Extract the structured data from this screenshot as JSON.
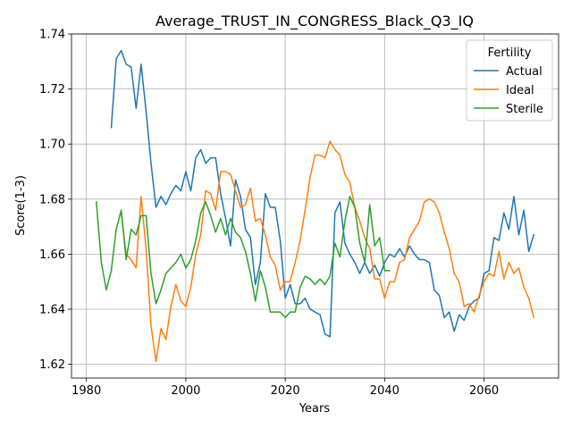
{
  "chart_data": {
    "type": "line",
    "title": "Average_TRUST_IN_CONGRESS_Black_Q3_IQ",
    "xlabel": "Years",
    "ylabel": "Score(1-3)",
    "xlim": [
      1977,
      2075
    ],
    "ylim": [
      1.615,
      1.74
    ],
    "xticks": [
      1980,
      2000,
      2020,
      2040,
      2060
    ],
    "yticks": [
      1.62,
      1.64,
      1.66,
      1.68,
      1.7,
      1.72,
      1.74
    ],
    "ytick_labels": [
      "1.62",
      "1.64",
      "1.66",
      "1.68",
      "1.70",
      "1.72",
      "1.74"
    ],
    "grid": true,
    "legend": {
      "title": "Fertility",
      "placement": "top-right"
    },
    "series": [
      {
        "name": "Actual",
        "color": "#1f77b4",
        "x": [
          1985,
          1986,
          1987,
          1988,
          1989,
          1990,
          1991,
          1992,
          1993,
          1994,
          1995,
          1996,
          1997,
          1998,
          1999,
          2000,
          2001,
          2002,
          2003,
          2004,
          2005,
          2006,
          2007,
          2008,
          2009,
          2010,
          2011,
          2012,
          2013,
          2014,
          2015,
          2016,
          2017,
          2018,
          2019,
          2020,
          2021,
          2022,
          2023,
          2024,
          2025,
          2026,
          2027,
          2028,
          2029,
          2030,
          2031,
          2032,
          2033,
          2034,
          2035,
          2036,
          2037,
          2038,
          2039,
          2040,
          2041,
          2042,
          2043,
          2044,
          2045,
          2046,
          2047,
          2048,
          2049,
          2050,
          2051,
          2052,
          2053,
          2054,
          2055,
          2056,
          2057,
          2058,
          2059,
          2060,
          2061,
          2062,
          2063,
          2064,
          2065,
          2066,
          2067,
          2068,
          2069,
          2070
        ],
        "values": [
          1.706,
          1.731,
          1.734,
          1.729,
          1.728,
          1.713,
          1.729,
          1.712,
          1.693,
          1.677,
          1.681,
          1.678,
          1.682,
          1.685,
          1.683,
          1.69,
          1.683,
          1.695,
          1.698,
          1.693,
          1.695,
          1.695,
          1.682,
          1.673,
          1.663,
          1.687,
          1.681,
          1.669,
          1.666,
          1.649,
          1.657,
          1.682,
          1.677,
          1.677,
          1.665,
          1.644,
          1.649,
          1.642,
          1.642,
          1.644,
          1.64,
          1.639,
          1.638,
          1.631,
          1.63,
          1.675,
          1.679,
          1.664,
          1.66,
          1.657,
          1.653,
          1.657,
          1.653,
          1.656,
          1.652,
          1.657,
          1.66,
          1.659,
          1.662,
          1.659,
          1.663,
          1.66,
          1.658,
          1.658,
          1.657,
          1.647,
          1.645,
          1.637,
          1.639,
          1.632,
          1.638,
          1.636,
          1.641,
          1.643,
          1.644,
          1.653,
          1.654,
          1.666,
          1.665,
          1.675,
          1.669,
          1.681,
          1.667,
          1.676,
          1.661,
          1.667
        ]
      },
      {
        "name": "Ideal",
        "color": "#ff7f0e",
        "x": [
          1987,
          1988,
          1989,
          1990,
          1991,
          1992,
          1993,
          1994,
          1995,
          1996,
          1997,
          1998,
          1999,
          2000,
          2001,
          2002,
          2003,
          2004,
          2005,
          2006,
          2007,
          2008,
          2009,
          2010,
          2011,
          2012,
          2013,
          2014,
          2015,
          2016,
          2017,
          2018,
          2019,
          2020,
          2021,
          2022,
          2023,
          2024,
          2025,
          2026,
          2027,
          2028,
          2029,
          2030,
          2031,
          2032,
          2033,
          2034,
          2035,
          2036,
          2037,
          2038,
          2039,
          2040,
          2041,
          2042,
          2043,
          2044,
          2045,
          2046,
          2047,
          2048,
          2049,
          2050,
          2051,
          2052,
          2053,
          2054,
          2055,
          2056,
          2057,
          2058,
          2059,
          2060,
          2061,
          2062,
          2063,
          2064,
          2065,
          2066,
          2067,
          2068,
          2069,
          2070
        ],
        "values": [
          1.675,
          1.66,
          1.658,
          1.655,
          1.681,
          1.662,
          1.634,
          1.621,
          1.633,
          1.629,
          1.641,
          1.649,
          1.643,
          1.641,
          1.648,
          1.66,
          1.667,
          1.683,
          1.682,
          1.676,
          1.69,
          1.69,
          1.689,
          1.683,
          1.677,
          1.678,
          1.684,
          1.672,
          1.673,
          1.667,
          1.659,
          1.656,
          1.647,
          1.65,
          1.65,
          1.657,
          1.665,
          1.676,
          1.688,
          1.696,
          1.696,
          1.695,
          1.701,
          1.698,
          1.696,
          1.689,
          1.686,
          1.677,
          1.672,
          1.666,
          1.662,
          1.651,
          1.651,
          1.644,
          1.65,
          1.65,
          1.657,
          1.658,
          1.666,
          1.669,
          1.672,
          1.679,
          1.68,
          1.679,
          1.675,
          1.668,
          1.662,
          1.653,
          1.65,
          1.641,
          1.642,
          1.639,
          1.645,
          1.65,
          1.653,
          1.652,
          1.661,
          1.651,
          1.657,
          1.653,
          1.655,
          1.648,
          1.644,
          1.637
        ]
      },
      {
        "name": "Sterile",
        "color": "#2ca02c",
        "x": [
          1982,
          1983,
          1984,
          1985,
          1986,
          1987,
          1988,
          1989,
          1990,
          1991,
          1992,
          1993,
          1994,
          1995,
          1996,
          1997,
          1998,
          1999,
          2000,
          2001,
          2002,
          2003,
          2004,
          2005,
          2006,
          2007,
          2008,
          2009,
          2010,
          2011,
          2012,
          2013,
          2014,
          2015,
          2016,
          2017,
          2018,
          2019,
          2020,
          2021,
          2022,
          2023,
          2024,
          2025,
          2026,
          2027,
          2028,
          2029,
          2030,
          2031,
          2032,
          2033,
          2034,
          2035,
          2036,
          2037,
          2038,
          2039,
          2040,
          2041
        ],
        "values": [
          1.679,
          1.657,
          1.647,
          1.654,
          1.669,
          1.676,
          1.658,
          1.669,
          1.667,
          1.674,
          1.674,
          1.653,
          1.642,
          1.647,
          1.653,
          1.655,
          1.657,
          1.66,
          1.655,
          1.658,
          1.665,
          1.675,
          1.679,
          1.674,
          1.668,
          1.673,
          1.667,
          1.673,
          1.668,
          1.666,
          1.661,
          1.653,
          1.643,
          1.654,
          1.648,
          1.639,
          1.639,
          1.639,
          1.637,
          1.639,
          1.639,
          1.648,
          1.652,
          1.651,
          1.649,
          1.651,
          1.649,
          1.652,
          1.664,
          1.659,
          1.672,
          1.681,
          1.677,
          1.664,
          1.657,
          1.678,
          1.663,
          1.666,
          1.654,
          1.654
        ]
      }
    ]
  }
}
